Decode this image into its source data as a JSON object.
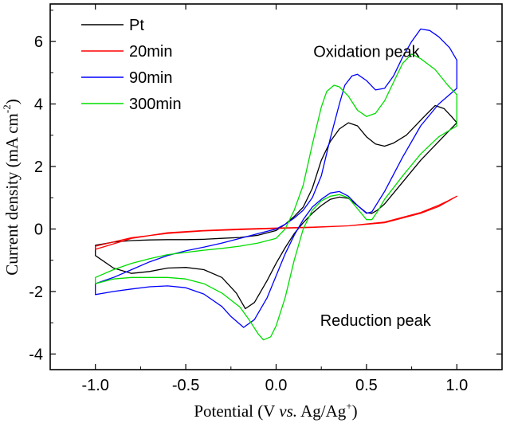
{
  "chart_data": {
    "type": "line",
    "xlabel_parts": [
      "Potential (V ",
      "vs.",
      " Ag/Ag",
      "+",
      ")"
    ],
    "ylabel_parts": [
      "Current density (mA cm",
      "-2",
      ")"
    ],
    "xlim": [
      -1.25,
      1.25
    ],
    "ylim": [
      -4.5,
      7.2
    ],
    "xticks": [
      -1.0,
      -0.5,
      0.0,
      0.5,
      1.0
    ],
    "xtick_labels": [
      "-1.0",
      "-0.5",
      "0.0",
      "0.5",
      "1.0"
    ],
    "yticks": [
      -4,
      -2,
      0,
      2,
      4,
      6
    ],
    "ytick_labels": [
      "-4",
      "-2",
      "0",
      "2",
      "4",
      "6"
    ],
    "legend_position": "top-left",
    "annotations": [
      {
        "text": "Oxidation peak",
        "x": 0.5,
        "y": 5.5
      },
      {
        "text": "Reduction peak",
        "x": 0.55,
        "y": -3.1
      }
    ],
    "series": [
      {
        "name": "Pt",
        "color": "#000000",
        "points": [
          [
            -1.0,
            -0.85
          ],
          [
            -0.9,
            -1.25
          ],
          [
            -0.8,
            -1.42
          ],
          [
            -0.7,
            -1.36
          ],
          [
            -0.6,
            -1.25
          ],
          [
            -0.5,
            -1.23
          ],
          [
            -0.4,
            -1.3
          ],
          [
            -0.3,
            -1.55
          ],
          [
            -0.22,
            -2.05
          ],
          [
            -0.17,
            -2.55
          ],
          [
            -0.12,
            -2.35
          ],
          [
            -0.05,
            -1.65
          ],
          [
            0.0,
            -1.1
          ],
          [
            0.05,
            -0.6
          ],
          [
            0.1,
            -0.15
          ],
          [
            0.15,
            0.2
          ],
          [
            0.2,
            0.5
          ],
          [
            0.25,
            0.75
          ],
          [
            0.3,
            0.95
          ],
          [
            0.35,
            1.02
          ],
          [
            0.4,
            0.98
          ],
          [
            0.45,
            0.75
          ],
          [
            0.5,
            0.52
          ],
          [
            0.53,
            0.5
          ],
          [
            0.56,
            0.6
          ],
          [
            0.6,
            0.8
          ],
          [
            0.7,
            1.5
          ],
          [
            0.8,
            2.2
          ],
          [
            0.9,
            2.8
          ],
          [
            1.0,
            3.4
          ],
          [
            0.97,
            3.6
          ],
          [
            0.93,
            3.85
          ],
          [
            0.88,
            3.95
          ],
          [
            0.82,
            3.6
          ],
          [
            0.72,
            3.0
          ],
          [
            0.65,
            2.75
          ],
          [
            0.6,
            2.65
          ],
          [
            0.55,
            2.72
          ],
          [
            0.5,
            2.95
          ],
          [
            0.45,
            3.3
          ],
          [
            0.4,
            3.4
          ],
          [
            0.35,
            3.2
          ],
          [
            0.3,
            2.8
          ],
          [
            0.25,
            2.2
          ],
          [
            0.2,
            1.3
          ],
          [
            0.15,
            0.7
          ],
          [
            0.1,
            0.4
          ],
          [
            0.05,
            0.15
          ],
          [
            0.0,
            -0.05
          ],
          [
            -0.1,
            -0.2
          ],
          [
            -0.2,
            -0.27
          ],
          [
            -0.3,
            -0.3
          ],
          [
            -0.4,
            -0.33
          ],
          [
            -0.5,
            -0.34
          ],
          [
            -0.6,
            -0.34
          ],
          [
            -0.7,
            -0.35
          ],
          [
            -0.8,
            -0.37
          ],
          [
            -0.9,
            -0.42
          ],
          [
            -1.0,
            -0.52
          ]
        ]
      },
      {
        "name": "20min",
        "color": "#ff0000",
        "points": [
          [
            -1.0,
            -0.55
          ],
          [
            -0.8,
            -0.28
          ],
          [
            -0.6,
            -0.14
          ],
          [
            -0.4,
            -0.06
          ],
          [
            -0.2,
            -0.02
          ],
          [
            0.0,
            0.02
          ],
          [
            0.2,
            0.05
          ],
          [
            0.4,
            0.1
          ],
          [
            0.6,
            0.2
          ],
          [
            0.8,
            0.5
          ],
          [
            0.9,
            0.72
          ],
          [
            1.0,
            1.05
          ],
          [
            0.95,
            0.9
          ],
          [
            0.9,
            0.76
          ],
          [
            0.8,
            0.53
          ],
          [
            0.6,
            0.22
          ],
          [
            0.4,
            0.1
          ],
          [
            0.2,
            0.06
          ],
          [
            0.0,
            0.03
          ],
          [
            -0.2,
            0.0
          ],
          [
            -0.4,
            -0.05
          ],
          [
            -0.6,
            -0.12
          ],
          [
            -0.8,
            -0.3
          ],
          [
            -1.0,
            -0.65
          ]
        ]
      },
      {
        "name": "90min",
        "color": "#0000ff",
        "points": [
          [
            -1.0,
            -2.1
          ],
          [
            -0.9,
            -2.0
          ],
          [
            -0.8,
            -1.92
          ],
          [
            -0.7,
            -1.85
          ],
          [
            -0.6,
            -1.82
          ],
          [
            -0.5,
            -1.88
          ],
          [
            -0.4,
            -2.08
          ],
          [
            -0.3,
            -2.48
          ],
          [
            -0.25,
            -2.8
          ],
          [
            -0.18,
            -3.15
          ],
          [
            -0.12,
            -2.9
          ],
          [
            -0.05,
            -2.2
          ],
          [
            0.0,
            -1.5
          ],
          [
            0.05,
            -0.8
          ],
          [
            0.1,
            -0.2
          ],
          [
            0.15,
            0.3
          ],
          [
            0.2,
            0.7
          ],
          [
            0.25,
            0.95
          ],
          [
            0.3,
            1.15
          ],
          [
            0.35,
            1.2
          ],
          [
            0.4,
            1.05
          ],
          [
            0.45,
            0.75
          ],
          [
            0.5,
            0.5
          ],
          [
            0.53,
            0.55
          ],
          [
            0.6,
            1.2
          ],
          [
            0.7,
            2.3
          ],
          [
            0.8,
            3.3
          ],
          [
            0.9,
            4.0
          ],
          [
            1.0,
            4.5
          ],
          [
            1.0,
            5.4
          ],
          [
            0.96,
            5.8
          ],
          [
            0.9,
            6.15
          ],
          [
            0.85,
            6.35
          ],
          [
            0.8,
            6.4
          ],
          [
            0.75,
            6.0
          ],
          [
            0.7,
            5.5
          ],
          [
            0.65,
            4.9
          ],
          [
            0.6,
            4.5
          ],
          [
            0.55,
            4.45
          ],
          [
            0.5,
            4.75
          ],
          [
            0.45,
            4.95
          ],
          [
            0.42,
            4.9
          ],
          [
            0.38,
            4.6
          ],
          [
            0.35,
            4.0
          ],
          [
            0.3,
            2.9
          ],
          [
            0.25,
            1.7
          ],
          [
            0.2,
            1.0
          ],
          [
            0.15,
            0.6
          ],
          [
            0.1,
            0.35
          ],
          [
            0.05,
            0.15
          ],
          [
            0.0,
            0.0
          ],
          [
            -0.1,
            -0.15
          ],
          [
            -0.2,
            -0.3
          ],
          [
            -0.3,
            -0.45
          ],
          [
            -0.4,
            -0.58
          ],
          [
            -0.5,
            -0.7
          ],
          [
            -0.6,
            -0.85
          ],
          [
            -0.7,
            -1.05
          ],
          [
            -0.8,
            -1.3
          ],
          [
            -0.9,
            -1.55
          ],
          [
            -1.0,
            -1.75
          ]
        ]
      },
      {
        "name": "300min",
        "color": "#00dd00",
        "points": [
          [
            -1.0,
            -1.75
          ],
          [
            -0.9,
            -1.6
          ],
          [
            -0.8,
            -1.55
          ],
          [
            -0.7,
            -1.55
          ],
          [
            -0.6,
            -1.55
          ],
          [
            -0.5,
            -1.6
          ],
          [
            -0.4,
            -1.75
          ],
          [
            -0.3,
            -2.05
          ],
          [
            -0.2,
            -2.5
          ],
          [
            -0.15,
            -2.9
          ],
          [
            -0.1,
            -3.35
          ],
          [
            -0.07,
            -3.55
          ],
          [
            -0.03,
            -3.45
          ],
          [
            0.0,
            -3.1
          ],
          [
            0.05,
            -2.2
          ],
          [
            0.1,
            -1.0
          ],
          [
            0.15,
            0.0
          ],
          [
            0.2,
            0.6
          ],
          [
            0.25,
            0.9
          ],
          [
            0.3,
            1.05
          ],
          [
            0.35,
            1.1
          ],
          [
            0.4,
            1.0
          ],
          [
            0.45,
            0.65
          ],
          [
            0.5,
            0.3
          ],
          [
            0.53,
            0.3
          ],
          [
            0.56,
            0.55
          ],
          [
            0.6,
            0.95
          ],
          [
            0.7,
            1.7
          ],
          [
            0.8,
            2.4
          ],
          [
            0.9,
            2.95
          ],
          [
            1.0,
            3.3
          ],
          [
            1.0,
            4.3
          ],
          [
            0.95,
            4.6
          ],
          [
            0.88,
            5.1
          ],
          [
            0.8,
            5.45
          ],
          [
            0.75,
            5.6
          ],
          [
            0.7,
            5.3
          ],
          [
            0.65,
            4.7
          ],
          [
            0.6,
            4.1
          ],
          [
            0.55,
            3.7
          ],
          [
            0.5,
            3.6
          ],
          [
            0.45,
            3.8
          ],
          [
            0.4,
            4.25
          ],
          [
            0.35,
            4.55
          ],
          [
            0.32,
            4.6
          ],
          [
            0.28,
            4.4
          ],
          [
            0.25,
            3.9
          ],
          [
            0.2,
            2.7
          ],
          [
            0.15,
            1.4
          ],
          [
            0.1,
            0.6
          ],
          [
            0.05,
            0.0
          ],
          [
            0.0,
            -0.3
          ],
          [
            -0.1,
            -0.45
          ],
          [
            -0.2,
            -0.55
          ],
          [
            -0.3,
            -0.62
          ],
          [
            -0.4,
            -0.68
          ],
          [
            -0.5,
            -0.75
          ],
          [
            -0.6,
            -0.82
          ],
          [
            -0.7,
            -0.95
          ],
          [
            -0.8,
            -1.1
          ],
          [
            -0.9,
            -1.3
          ],
          [
            -1.0,
            -1.55
          ]
        ]
      }
    ]
  }
}
